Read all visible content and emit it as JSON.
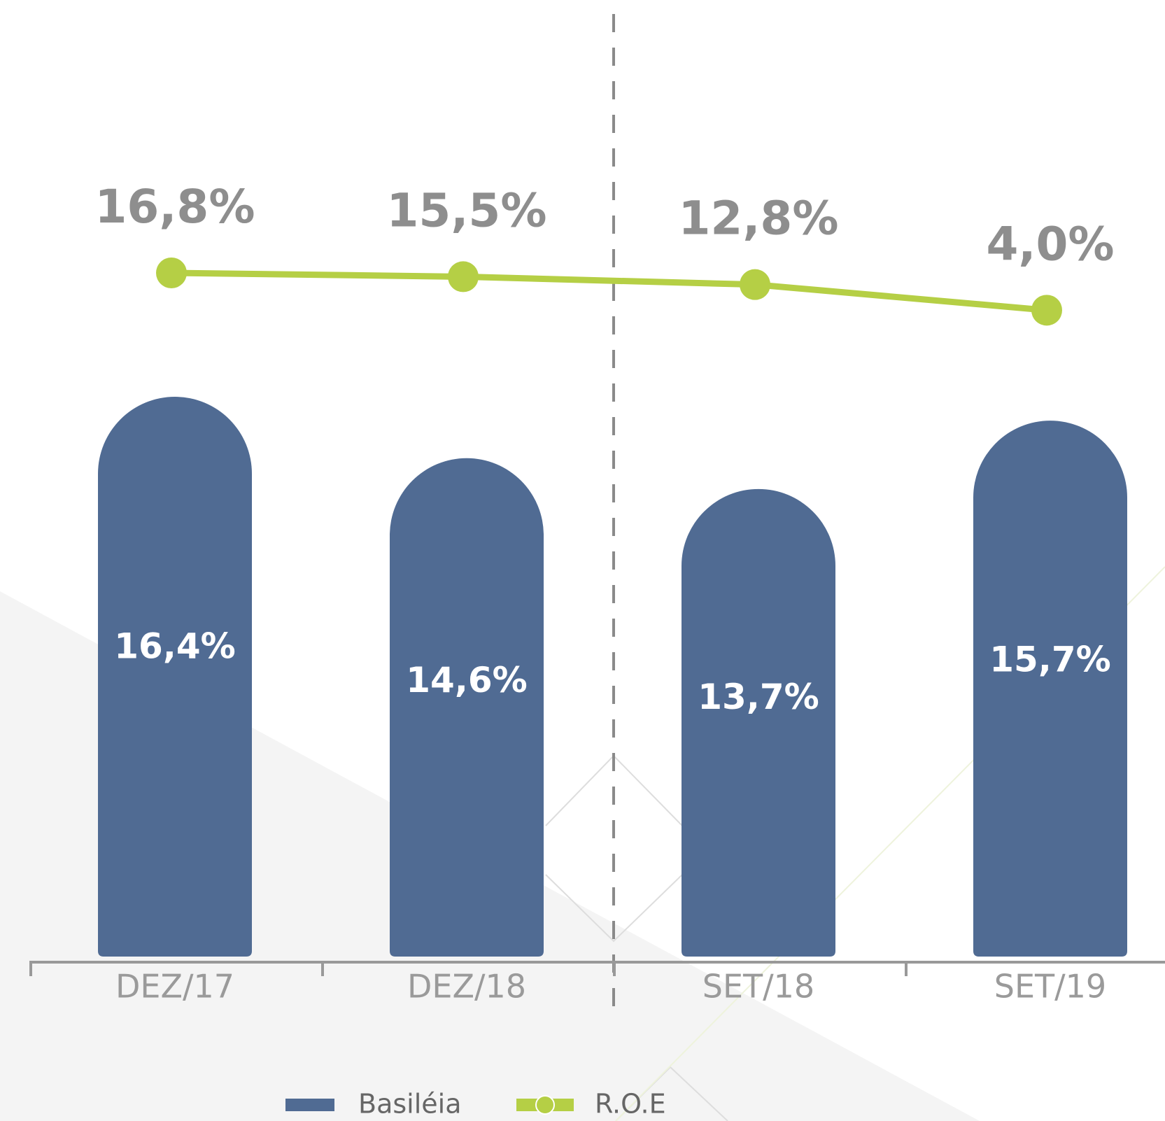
{
  "chart_data": {
    "type": "bar-line",
    "categories": [
      "DEZ/17",
      "DEZ/18",
      "SET/18",
      "SET/19"
    ],
    "series": [
      {
        "name": "Basiléia",
        "type": "bar",
        "color": "#506b93",
        "values": [
          16.4,
          14.6,
          13.7,
          15.7
        ],
        "value_labels": [
          "16,4%",
          "14,6%",
          "13,7%",
          "15,7%"
        ]
      },
      {
        "name": "R.O.E",
        "type": "line",
        "color": "#b5cf45",
        "values": [
          16.8,
          15.5,
          12.8,
          4.0
        ],
        "value_labels": [
          "16,8%",
          "15,5%",
          "12,8%",
          "4,0%"
        ]
      }
    ]
  }
}
